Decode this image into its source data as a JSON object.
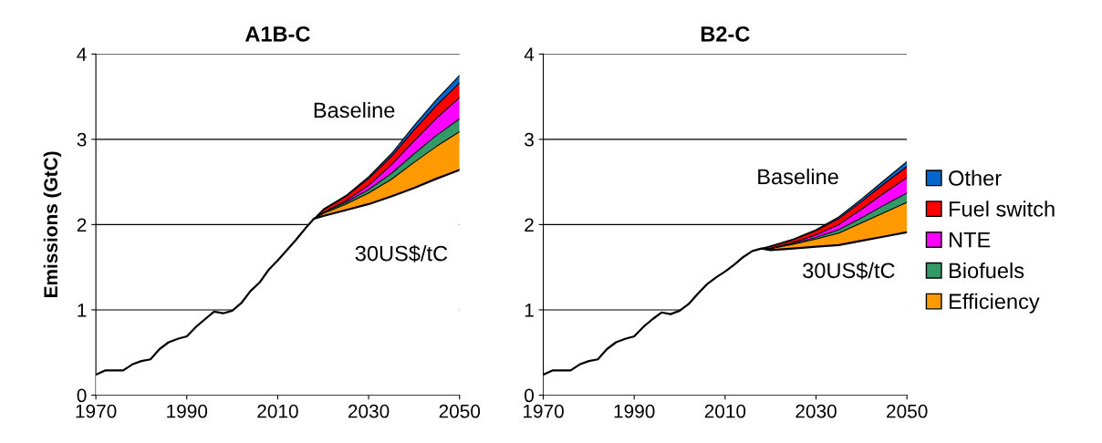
{
  "chart_data": [
    {
      "type": "area",
      "title": "A1B-C",
      "ylabel": "Emissions (GtC)",
      "stacked": true,
      "grid": "y",
      "xlim": [
        1970,
        2050
      ],
      "xticks": [
        1970,
        1990,
        2010,
        2030,
        2050
      ],
      "ylim": [
        0,
        4
      ],
      "yticks": [
        0,
        1,
        2,
        3,
        4
      ],
      "annotations": [
        "Baseline",
        "30US$/tC"
      ],
      "x": [
        1970,
        1972,
        1976,
        1978,
        1980,
        1982,
        1984,
        1986,
        1988,
        1990,
        1992,
        1994,
        1996,
        1998,
        2000,
        2002,
        2004,
        2006,
        2008,
        2010,
        2012,
        2014,
        2016,
        2018,
        2020,
        2025,
        2030,
        2035,
        2040,
        2045,
        2050
      ],
      "series": [
        {
          "color": "#ffffff",
          "values": [
            0.24,
            0.29,
            0.29,
            0.36,
            0.4,
            0.42,
            0.54,
            0.62,
            0.66,
            0.69,
            0.8,
            0.89,
            0.98,
            0.96,
            0.99,
            1.08,
            1.22,
            1.32,
            1.47,
            1.58,
            1.7,
            1.82,
            1.95,
            2.07,
            2.1,
            2.17,
            2.24,
            2.33,
            2.43,
            2.54,
            2.64
          ]
        },
        {
          "color": "#ff9900",
          "values": [
            null,
            null,
            null,
            null,
            null,
            null,
            null,
            null,
            null,
            null,
            null,
            null,
            null,
            null,
            null,
            null,
            null,
            null,
            null,
            null,
            null,
            null,
            null,
            0,
            0.03,
            0.07,
            0.13,
            0.2,
            0.3,
            0.38,
            0.45
          ]
        },
        {
          "color": "#339966",
          "values": [
            null,
            null,
            null,
            null,
            null,
            null,
            null,
            null,
            null,
            null,
            null,
            null,
            null,
            null,
            null,
            null,
            null,
            null,
            null,
            null,
            null,
            null,
            null,
            0,
            0.01,
            0.02,
            0.04,
            0.07,
            0.1,
            0.13,
            0.15
          ]
        },
        {
          "color": "#ff00ff",
          "values": [
            null,
            null,
            null,
            null,
            null,
            null,
            null,
            null,
            null,
            null,
            null,
            null,
            null,
            null,
            null,
            null,
            null,
            null,
            null,
            null,
            null,
            null,
            null,
            0,
            0,
            0.02,
            0.05,
            0.1,
            0.15,
            0.2,
            0.25
          ]
        },
        {
          "color": "#ff0000",
          "values": [
            null,
            null,
            null,
            null,
            null,
            null,
            null,
            null,
            null,
            null,
            null,
            null,
            null,
            null,
            null,
            null,
            null,
            null,
            null,
            null,
            null,
            null,
            null,
            0,
            0.03,
            0.05,
            0.08,
            0.1,
            0.13,
            0.15,
            0.17
          ]
        },
        {
          "color": "#0066cc",
          "values": [
            null,
            null,
            null,
            null,
            null,
            null,
            null,
            null,
            null,
            null,
            null,
            null,
            null,
            null,
            null,
            null,
            null,
            null,
            null,
            null,
            null,
            null,
            null,
            0,
            0.01,
            0.01,
            0.02,
            0.03,
            0.05,
            0.07,
            0.09
          ]
        }
      ]
    },
    {
      "type": "area",
      "title": "B2-C",
      "stacked": true,
      "legend": "right",
      "grid": "y",
      "xlim": [
        1970,
        2050
      ],
      "xticks": [
        1970,
        1990,
        2010,
        2030,
        2050
      ],
      "ylim": [
        0,
        4
      ],
      "yticks": [
        0,
        1,
        2,
        3,
        4
      ],
      "annotations": [
        "Baseline",
        "30US$/tC"
      ],
      "x": [
        1970,
        1972,
        1976,
        1978,
        1980,
        1982,
        1984,
        1986,
        1988,
        1990,
        1992,
        1994,
        1996,
        1998,
        2000,
        2002,
        2004,
        2006,
        2008,
        2010,
        2012,
        2014,
        2016,
        2018,
        2020,
        2025,
        2030,
        2035,
        2040,
        2045,
        2050
      ],
      "series": [
        {
          "color": "#ffffff",
          "values": [
            0.24,
            0.29,
            0.29,
            0.36,
            0.4,
            0.42,
            0.54,
            0.62,
            0.66,
            0.69,
            0.8,
            0.89,
            0.97,
            0.95,
            0.99,
            1.07,
            1.19,
            1.3,
            1.38,
            1.45,
            1.53,
            1.62,
            1.69,
            1.72,
            1.7,
            1.72,
            1.74,
            1.76,
            1.81,
            1.86,
            1.91
          ]
        },
        {
          "name": "Efficiency",
          "color": "#ff9900",
          "values": [
            null,
            null,
            null,
            null,
            null,
            null,
            null,
            null,
            null,
            null,
            null,
            null,
            null,
            null,
            null,
            null,
            null,
            null,
            null,
            null,
            null,
            null,
            null,
            0,
            0.02,
            0.05,
            0.09,
            0.14,
            0.21,
            0.28,
            0.35
          ]
        },
        {
          "name": "Biofuels",
          "color": "#339966",
          "values": [
            null,
            null,
            null,
            null,
            null,
            null,
            null,
            null,
            null,
            null,
            null,
            null,
            null,
            null,
            null,
            null,
            null,
            null,
            null,
            null,
            null,
            null,
            null,
            0,
            0,
            0.01,
            0.02,
            0.04,
            0.06,
            0.09,
            0.11
          ]
        },
        {
          "name": "NTE",
          "color": "#ff00ff",
          "values": [
            null,
            null,
            null,
            null,
            null,
            null,
            null,
            null,
            null,
            null,
            null,
            null,
            null,
            null,
            null,
            null,
            null,
            null,
            null,
            null,
            null,
            null,
            null,
            0,
            0,
            0.01,
            0.03,
            0.06,
            0.1,
            0.14,
            0.18
          ]
        },
        {
          "name": "Fuel switch",
          "color": "#ff0000",
          "values": [
            null,
            null,
            null,
            null,
            null,
            null,
            null,
            null,
            null,
            null,
            null,
            null,
            null,
            null,
            null,
            null,
            null,
            null,
            null,
            null,
            null,
            null,
            null,
            0,
            0.02,
            0.03,
            0.05,
            0.07,
            0.09,
            0.11,
            0.13
          ]
        },
        {
          "name": "Other",
          "color": "#0066cc",
          "values": [
            null,
            null,
            null,
            null,
            null,
            null,
            null,
            null,
            null,
            null,
            null,
            null,
            null,
            null,
            null,
            null,
            null,
            null,
            null,
            null,
            null,
            null,
            null,
            0,
            0.01,
            0.01,
            0.01,
            0.02,
            0.03,
            0.04,
            0.06
          ]
        }
      ]
    }
  ]
}
